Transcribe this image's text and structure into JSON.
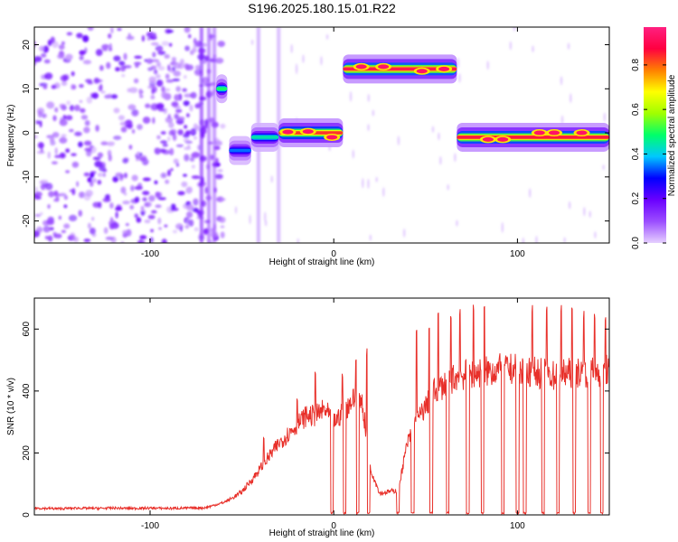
{
  "title": "S196.2025.180.15.01.R22",
  "chart_data": [
    {
      "type": "heatmap",
      "xlabel": "Height of straight line (km)",
      "ylabel": "Frequency (Hz)",
      "xlim": [
        -163,
        150
      ],
      "ylim": [
        -25,
        24
      ],
      "xticks": [
        -100,
        0,
        100
      ],
      "yticks": [
        -20,
        -10,
        0,
        10,
        20
      ],
      "colorbar": {
        "label": "Normalized spectral amplitude",
        "range": [
          0,
          0.97
        ],
        "ticks": [
          "0.0",
          "0.2",
          "0.4",
          "0.6",
          "0.8"
        ],
        "tick_values": [
          0,
          0.2,
          0.4,
          0.6,
          0.8
        ],
        "colors": [
          "#e6d0ff",
          "#9b4dff",
          "#6a00ff",
          "#0000ff",
          "#00c8ff",
          "#00ff6a",
          "#a0ff00",
          "#ffff00",
          "#ff8000",
          "#ff0040",
          "#ff2080"
        ]
      },
      "noise_region": {
        "x": [
          -163,
          -60
        ],
        "amplitude": 0.15
      },
      "bands": [
        {
          "x": [
            -64,
            -58
          ],
          "freq": 10,
          "amplitude": 0.5
        },
        {
          "x": [
            -57,
            -45
          ],
          "freq": -4,
          "amplitude": 0.35
        },
        {
          "x": [
            -45,
            -30
          ],
          "freq": -1,
          "amplitude": 0.45
        },
        {
          "x": [
            -30,
            5
          ],
          "freq": 0,
          "amplitude": 0.85
        },
        {
          "x": [
            5,
            67
          ],
          "freq": 14.5,
          "amplitude": 0.9
        },
        {
          "x": [
            67,
            150
          ],
          "freq": -1,
          "amplitude": 0.88
        }
      ],
      "peak_points": [
        {
          "x": -25,
          "freq": 0.2
        },
        {
          "x": -14,
          "freq": 0.3
        },
        {
          "x": -1,
          "freq": -1
        },
        {
          "x": 15,
          "freq": 15
        },
        {
          "x": 27,
          "freq": 15
        },
        {
          "x": 48,
          "freq": 14
        },
        {
          "x": 60,
          "freq": 14.5
        },
        {
          "x": 84,
          "freq": -1.5
        },
        {
          "x": 92,
          "freq": -1.5
        },
        {
          "x": 112,
          "freq": 0
        },
        {
          "x": 120,
          "freq": 0
        },
        {
          "x": 135,
          "freq": 0
        }
      ]
    },
    {
      "type": "line",
      "xlabel": "Height of straight line (km)",
      "ylabel": "SNR (10 * v/v)",
      "xlim": [
        -163,
        150
      ],
      "ylim": [
        0,
        700
      ],
      "xticks": [
        -100,
        0,
        100
      ],
      "yticks": [
        0,
        200,
        400,
        600
      ],
      "series": [
        {
          "color": "#e8302a",
          "x": [
            -163,
            -150,
            -140,
            -130,
            -120,
            -110,
            -100,
            -90,
            -80,
            -70,
            -60,
            -55,
            -50,
            -45,
            -40,
            -35,
            -30,
            -25,
            -20,
            -15,
            -10,
            -5,
            0,
            5,
            10,
            15,
            18,
            20,
            25,
            30,
            35,
            40,
            45,
            50,
            55,
            60,
            65,
            70,
            80,
            90,
            100,
            110,
            120,
            130,
            140,
            150
          ],
          "values": [
            22,
            20,
            22,
            21,
            22,
            21,
            22,
            21,
            22,
            23,
            40,
            55,
            75,
            110,
            150,
            190,
            230,
            260,
            290,
            320,
            320,
            340,
            300,
            330,
            370,
            380,
            250,
            150,
            70,
            75,
            80,
            230,
            300,
            350,
            400,
            420,
            440,
            450,
            460,
            470,
            470,
            460,
            450,
            460,
            460,
            470
          ],
          "spikes": [
            {
              "x": -38,
              "value": 250
            },
            {
              "x": -20,
              "value": 400
            },
            {
              "x": -10,
              "value": 480
            },
            {
              "x": 5,
              "value": 470
            },
            {
              "x": 12,
              "value": 520
            },
            {
              "x": 18,
              "value": 540
            },
            {
              "x": 45,
              "value": 640
            },
            {
              "x": 52,
              "value": 620
            },
            {
              "x": 57,
              "value": 660
            },
            {
              "x": 64,
              "value": 650
            },
            {
              "x": 69,
              "value": 700
            },
            {
              "x": 76,
              "value": 700
            },
            {
              "x": 82,
              "value": 680
            },
            {
              "x": 92,
              "value": 700
            },
            {
              "x": 101,
              "value": 680
            },
            {
              "x": 108,
              "value": 690
            },
            {
              "x": 116,
              "value": 700
            },
            {
              "x": 124,
              "value": 680
            },
            {
              "x": 130,
              "value": 670
            },
            {
              "x": 136,
              "value": 690
            },
            {
              "x": 142,
              "value": 670
            },
            {
              "x": 148,
              "value": 650
            }
          ],
          "dropouts": [
            -1,
            6,
            13,
            19,
            35,
            43,
            53,
            62,
            73,
            81,
            92,
            100,
            104,
            114,
            122,
            131,
            139,
            146
          ]
        }
      ]
    }
  ]
}
